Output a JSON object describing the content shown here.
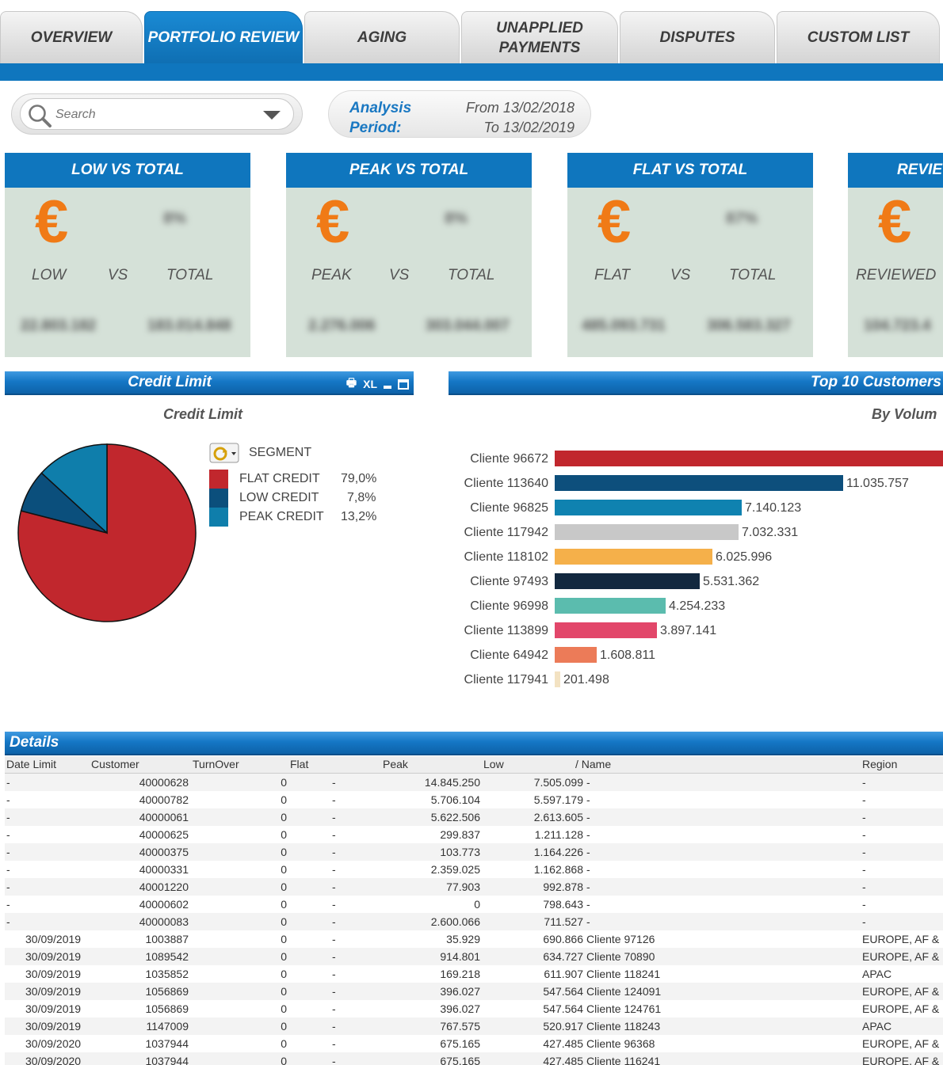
{
  "tabs": [
    {
      "label": "OVERVIEW",
      "active": false
    },
    {
      "label": "PORTFOLIO REVIEW",
      "active": true
    },
    {
      "label": "AGING",
      "active": false
    },
    {
      "label": "UNAPPLIED\nPAYMENTS",
      "active": false
    },
    {
      "label": "DISPUTES",
      "active": false
    },
    {
      "label": "CUSTOM LIST",
      "active": false
    }
  ],
  "search": {
    "placeholder": "Search"
  },
  "analysis": {
    "label_1": "Analysis",
    "label_2": "Period:",
    "from": "From 13/02/2018",
    "to": "To 13/02/2019"
  },
  "kpis": [
    {
      "title": "LOW VS TOTAL",
      "left_word": "LOW",
      "vs": "VS",
      "right_word": "TOTAL",
      "pct": "8%",
      "left_value": "22.803.182",
      "right_value": "183.014.848"
    },
    {
      "title": "PEAK VS TOTAL",
      "left_word": "PEAK",
      "vs": "VS",
      "right_word": "TOTAL",
      "pct": "8%",
      "left_value": "2.276.006",
      "right_value": "303.044.007"
    },
    {
      "title": "FLAT VS TOTAL",
      "left_word": "FLAT",
      "vs": "VS",
      "right_word": "TOTAL",
      "pct": "87%",
      "left_value": "485.093.731",
      "right_value": "306.583.327"
    },
    {
      "title": "REVIEW",
      "left_word": "REVIEWED",
      "vs": "",
      "right_word": "",
      "pct": "",
      "left_value": "104.723.4",
      "right_value": ""
    }
  ],
  "credit_panel": {
    "header": "Credit Limit",
    "subtitle": "Credit Limit",
    "toolbar": {
      "print": "🖶",
      "xl": "XL"
    }
  },
  "top10_panel": {
    "header": "Top 10 Customers",
    "subtitle": "By Volum"
  },
  "pie_legend": {
    "title": "SEGMENT"
  },
  "chart_data": [
    {
      "type": "pie",
      "title": "Credit Limit",
      "categories": [
        "FLAT CREDIT",
        "LOW  CREDIT",
        "PEAK  CREDIT"
      ],
      "values": [
        79.0,
        7.8,
        13.2
      ],
      "labels": [
        "79,0%",
        "7,8%",
        "13,2%"
      ],
      "colors": [
        "#c1272d",
        "#0b4f7c",
        "#0f7eab"
      ],
      "legend": "right"
    },
    {
      "type": "bar",
      "orientation": "horizontal",
      "categories": [
        "Cliente 96672",
        "Cliente 113640",
        "Cliente 96825",
        "Cliente 117942",
        "Cliente 118102",
        "Cliente 97493",
        "Cliente 96998",
        "Cliente 113899",
        "Cliente 64942",
        "Cliente 117941"
      ],
      "values": [
        14845250,
        11035757,
        7140123,
        7032331,
        6025996,
        5531362,
        4254233,
        3897141,
        1608811,
        201498
      ],
      "labels": [
        "",
        "11.035.757",
        "7.140.123",
        "7.032.331",
        "6.025.996",
        "5.531.362",
        "4.254.233",
        "3.897.141",
        "1.608.811",
        "201.498"
      ],
      "colors": [
        "#c1272d",
        "#0d4f7c",
        "#0f82b0",
        "#c8c8c8",
        "#f5b04a",
        "#12283f",
        "#5bbcae",
        "#e2476a",
        "#ec7b58",
        "#f3e2c2"
      ]
    }
  ],
  "details": {
    "header": "Details",
    "columns": [
      "Date Limit",
      "Customer",
      "TurnOver",
      "Flat",
      "Peak",
      "Low",
      "/ Name",
      "Region"
    ],
    "rows": [
      [
        "-",
        "40000628",
        "0",
        "-",
        "14.845.250",
        "7.505.099",
        "-",
        "-"
      ],
      [
        "-",
        "40000782",
        "0",
        "-",
        "5.706.104",
        "5.597.179",
        "-",
        "-"
      ],
      [
        "-",
        "40000061",
        "0",
        "-",
        "5.622.506",
        "2.613.605",
        "-",
        "-"
      ],
      [
        "-",
        "40000625",
        "0",
        "-",
        "299.837",
        "1.211.128",
        "-",
        "-"
      ],
      [
        "-",
        "40000375",
        "0",
        "-",
        "103.773",
        "1.164.226",
        "-",
        "-"
      ],
      [
        "-",
        "40000331",
        "0",
        "-",
        "2.359.025",
        "1.162.868",
        "-",
        "-"
      ],
      [
        "-",
        "40001220",
        "0",
        "-",
        "77.903",
        "992.878",
        "-",
        "-"
      ],
      [
        "-",
        "40000602",
        "0",
        "-",
        "0",
        "798.643",
        "-",
        "-"
      ],
      [
        "-",
        "40000083",
        "0",
        "-",
        "2.600.066",
        "711.527",
        "-",
        "-"
      ],
      [
        "30/09/2019",
        "1003887",
        "0",
        "-",
        "35.929",
        "690.866",
        "Cliente 97126",
        "EUROPE, AF &"
      ],
      [
        "30/09/2019",
        "1089542",
        "0",
        "-",
        "914.801",
        "634.727",
        "Cliente 70890",
        "EUROPE, AF &"
      ],
      [
        "30/09/2019",
        "1035852",
        "0",
        "-",
        "169.218",
        "611.907",
        "Cliente 118241",
        "APAC"
      ],
      [
        "30/09/2019",
        "1056869",
        "0",
        "-",
        "396.027",
        "547.564",
        "Cliente 124091",
        "EUROPE, AF &"
      ],
      [
        "30/09/2019",
        "1056869",
        "0",
        "-",
        "396.027",
        "547.564",
        "Cliente 124761",
        "EUROPE, AF &"
      ],
      [
        "30/09/2019",
        "1147009",
        "0",
        "-",
        "767.575",
        "520.917",
        "Cliente 118243",
        "APAC"
      ],
      [
        "30/09/2020",
        "1037944",
        "0",
        "-",
        "675.165",
        "427.485",
        "Cliente 96368",
        "EUROPE, AF &"
      ],
      [
        "30/09/2020",
        "1037944",
        "0",
        "-",
        "675.165",
        "427.485",
        "Cliente 116241",
        "EUROPE, AF &"
      ]
    ]
  }
}
